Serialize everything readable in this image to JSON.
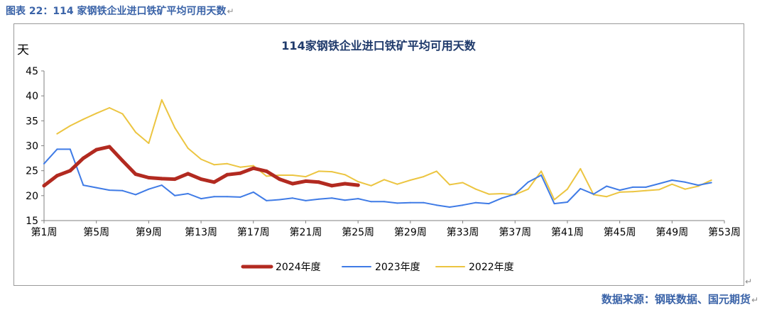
{
  "caption": "图表 22：114 家钢铁企业进口铁矿平均可用天数",
  "source": "数据来源：钢联数据、国元期货",
  "para_mark": "↵",
  "colors": {
    "caption": "#3a63a8",
    "y2024": "#b22a20",
    "y2023": "#3f7be6",
    "y2022": "#ecc541",
    "chart_title": "#1f3a6b"
  },
  "chart_data": {
    "type": "line",
    "title": "114家钢铁企业进口铁矿平均可用天数",
    "ylabel": "天",
    "xlabel": "",
    "ylim": [
      15,
      45
    ],
    "yticks": [
      15,
      20,
      25,
      30,
      35,
      40,
      45
    ],
    "xlim": [
      1,
      53
    ],
    "xtick_labels": [
      {
        "week": 1,
        "label": "第1周"
      },
      {
        "week": 5,
        "label": "第5周"
      },
      {
        "week": 9,
        "label": "第9周"
      },
      {
        "week": 13,
        "label": "第13周"
      },
      {
        "week": 17,
        "label": "第17周"
      },
      {
        "week": 21,
        "label": "第21周"
      },
      {
        "week": 25,
        "label": "第25周"
      },
      {
        "week": 29,
        "label": "第29周"
      },
      {
        "week": 33,
        "label": "第33周"
      },
      {
        "week": 37,
        "label": "第37周"
      },
      {
        "week": 41,
        "label": "第41周"
      },
      {
        "week": 45,
        "label": "第45周"
      },
      {
        "week": 49,
        "label": "第49周"
      },
      {
        "week": 53,
        "label": "第53周"
      }
    ],
    "grid": false,
    "legend_position": "bottom",
    "series": [
      {
        "name": "2024年度",
        "color": "#b22a20",
        "start_week": 1,
        "values": [
          22.0,
          24.0,
          25.0,
          27.5,
          29.2,
          29.8,
          27.0,
          24.3,
          23.6,
          23.4,
          23.3,
          24.4,
          23.3,
          22.7,
          24.2,
          24.5,
          25.5,
          24.9,
          23.3,
          22.4,
          22.9,
          22.7,
          22.0,
          22.4,
          22.1
        ]
      },
      {
        "name": "2023年度",
        "color": "#3f7be6",
        "start_week": 1,
        "values": [
          26.4,
          29.3,
          29.3,
          22.1,
          21.6,
          21.1,
          21.0,
          20.2,
          21.3,
          22.1,
          20.0,
          20.4,
          19.4,
          19.8,
          19.8,
          19.7,
          20.7,
          19.0,
          19.2,
          19.5,
          19.0,
          19.3,
          19.5,
          19.1,
          19.4,
          18.8,
          18.8,
          18.5,
          18.6,
          18.6,
          18.1,
          17.7,
          18.1,
          18.6,
          18.4,
          19.5,
          20.3,
          22.7,
          24.1,
          18.4,
          18.7,
          21.4,
          20.3,
          21.9,
          21.1,
          21.7,
          21.7,
          22.4,
          23.1,
          22.7,
          22.1,
          22.6
        ]
      },
      {
        "name": "2022年度",
        "color": "#ecc541",
        "start_week": 2,
        "values": [
          32.4,
          34.0,
          35.3,
          36.5,
          37.6,
          36.4,
          32.7,
          30.5,
          39.2,
          33.6,
          29.5,
          27.3,
          26.2,
          26.4,
          25.7,
          26.0,
          23.9,
          24.1,
          24.1,
          23.8,
          24.9,
          24.8,
          24.2,
          22.8,
          22.0,
          23.2,
          22.3,
          23.1,
          23.8,
          24.9,
          22.2,
          22.6,
          21.3,
          20.3,
          20.4,
          20.2,
          21.3,
          24.9,
          19.2,
          21.3,
          25.4,
          20.2,
          19.8,
          20.7,
          20.8,
          21.0,
          21.2,
          22.3,
          21.3,
          21.9,
          23.1
        ]
      }
    ]
  }
}
